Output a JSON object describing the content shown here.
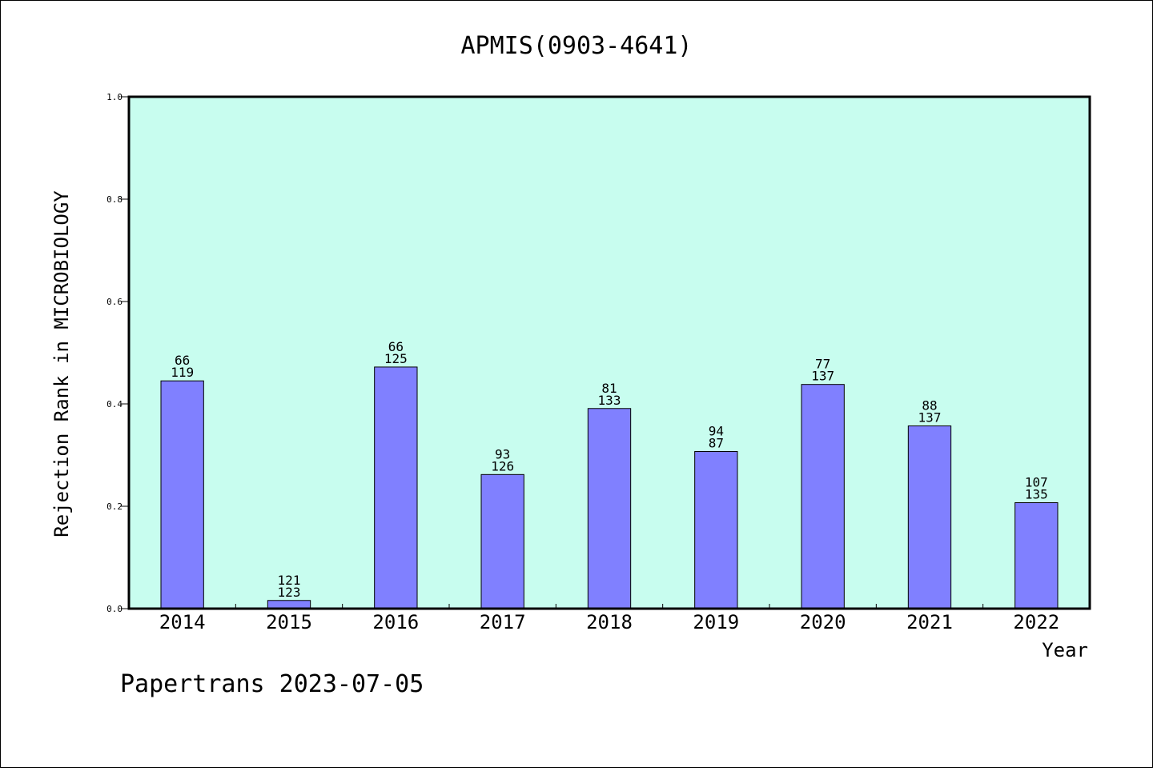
{
  "chart_data": {
    "type": "bar",
    "title": "APMIS(0903-4641)",
    "xlabel": "Year",
    "ylabel": "Rejection Rank in MICROBIOLOGY",
    "ylim": [
      0,
      1.0
    ],
    "yticks": [
      "0.0",
      "0.2",
      "0.4",
      "0.6",
      "0.8",
      "1.0"
    ],
    "grid": false,
    "colors": {
      "plot_bg": "#c8fdef",
      "bar": "#8080ff"
    },
    "categories": [
      "2014",
      "2015",
      "2016",
      "2017",
      "2018",
      "2019",
      "2020",
      "2021",
      "2022"
    ],
    "values": [
      0.445,
      0.016,
      0.472,
      0.262,
      0.391,
      0.307,
      0.438,
      0.357,
      0.207
    ],
    "label_top": [
      "66",
      "121",
      "66",
      "93",
      "81",
      "94",
      "77",
      "88",
      "107"
    ],
    "label_bottom": [
      "119",
      "123",
      "125",
      "126",
      "133",
      "87",
      "137",
      "137",
      "135"
    ]
  },
  "footer": "Papertrans 2023-07-05"
}
